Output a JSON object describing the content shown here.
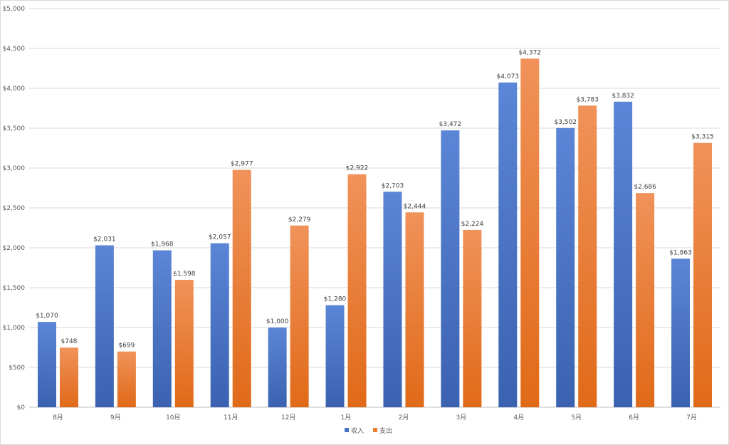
{
  "chart_data": {
    "type": "bar",
    "categories": [
      "8月",
      "9月",
      "10月",
      "11月",
      "12月",
      "1月",
      "2月",
      "3月",
      "4月",
      "5月",
      "6月",
      "7月"
    ],
    "series": [
      {
        "name": "収入",
        "values": [
          1070,
          2031,
          1968,
          2057,
          1000,
          1280,
          2703,
          3472,
          4073,
          3502,
          3832,
          1863
        ],
        "color": "#4472c4"
      },
      {
        "name": "支出",
        "values": [
          748,
          699,
          1598,
          2977,
          2279,
          2922,
          2444,
          2224,
          4372,
          3783,
          2686,
          3315
        ],
        "color": "#ed7d31"
      }
    ],
    "data_labels": [
      [
        "$1,070",
        "$2,031",
        "$1,968",
        "$2,057",
        "$1,000",
        "$1,280",
        "$2,703",
        "$3,472",
        "$4,073",
        "$3,502",
        "$3,832",
        "$1,863"
      ],
      [
        "$748",
        "$699",
        "$1,598",
        "$2,977",
        "$2,279",
        "$2,922",
        "$2,444",
        "$2,224",
        "$4,372",
        "$3,783",
        "$2,686",
        "$3,315"
      ]
    ],
    "y_ticks": [
      0,
      500,
      1000,
      1500,
      2000,
      2500,
      3000,
      3500,
      4000,
      4500,
      5000
    ],
    "y_tick_labels": [
      "$0",
      "$500",
      "$1,000",
      "$1,500",
      "$2,000",
      "$2,500",
      "$3,000",
      "$3,500",
      "$4,000",
      "$4,500",
      "$5,000"
    ],
    "ylim": [
      0,
      5000
    ],
    "title": "",
    "xlabel": "",
    "ylabel": "",
    "grid": true,
    "legend_position": "bottom"
  }
}
